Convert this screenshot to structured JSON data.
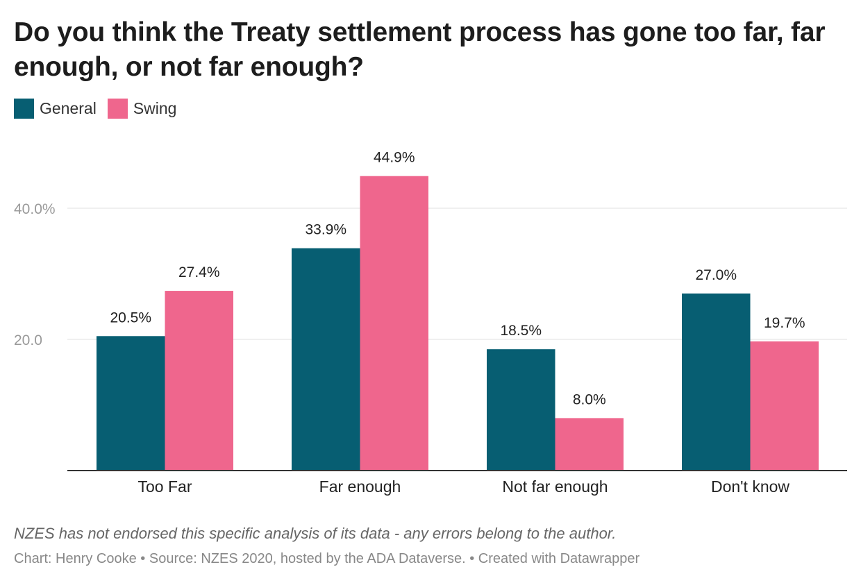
{
  "title": "Do you think the Treaty settlement process has gone too far, far enough, or not far enough?",
  "legend": [
    {
      "name": "General",
      "color": "#075e72"
    },
    {
      "name": "Swing",
      "color": "#ef668d"
    }
  ],
  "chart_data": {
    "type": "bar",
    "title": "Do you think the Treaty settlement process has gone too far, far enough, or not far enough?",
    "categories": [
      "Too Far",
      "Far enough",
      "Not far enough",
      "Don't know"
    ],
    "series": [
      {
        "name": "General",
        "color": "#075e72",
        "values": [
          20.5,
          33.9,
          18.5,
          27.0
        ],
        "labels": [
          "20.5%",
          "33.9%",
          "18.5%",
          "27.0%"
        ]
      },
      {
        "name": "Swing",
        "color": "#ef668d",
        "values": [
          27.4,
          44.9,
          8.0,
          19.7
        ],
        "labels": [
          "27.4%",
          "44.9%",
          "8.0%",
          "19.7%"
        ]
      }
    ],
    "yticks": [
      {
        "value": 20,
        "label": "20.0"
      },
      {
        "value": 40,
        "label": "40.0%"
      }
    ],
    "ylim": [
      0,
      50
    ],
    "xlabel": "",
    "ylabel": "",
    "grid": true,
    "legend_position": "top-left"
  },
  "footer": {
    "note": "NZES has not endorsed this specific analysis of its data - any errors belong to the author.",
    "credit": "Chart: Henry Cooke • Source: NZES 2020, hosted by the ADA Dataverse. • Created with Datawrapper"
  }
}
